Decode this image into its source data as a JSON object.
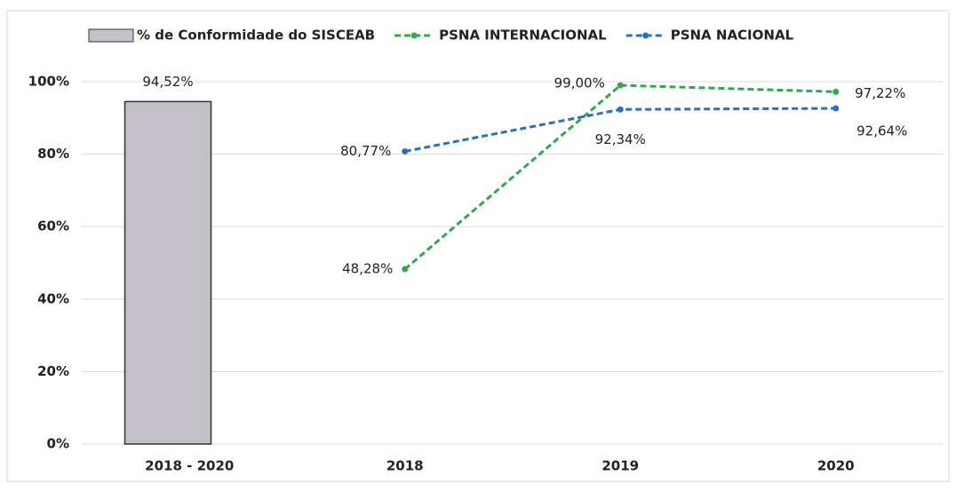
{
  "chart_data": {
    "type": "bar",
    "categories": [
      "2018 - 2020",
      "2018",
      "2019",
      "2020"
    ],
    "series": [
      {
        "name": "% de Conformidade do SISCEAB",
        "type": "bar",
        "color": "#c3c0c8",
        "values": [
          94.52,
          null,
          null,
          null
        ],
        "value_labels": [
          "94,52%",
          null,
          null,
          null
        ]
      },
      {
        "name": "PSNA INTERNACIONAL",
        "type": "line",
        "color": "#2fa84f",
        "values": [
          null,
          48.28,
          99.0,
          97.22
        ],
        "value_labels": [
          null,
          "48,28%",
          "99,00%",
          "97,22%"
        ]
      },
      {
        "name": "PSNA NACIONAL",
        "type": "line",
        "color": "#2a6fc0",
        "values": [
          null,
          80.77,
          92.34,
          92.64
        ],
        "value_labels": [
          null,
          "80,77%",
          "92,34%",
          "92,64%"
        ]
      }
    ],
    "ylim": [
      0,
      100
    ],
    "yticks": [
      {
        "value": 0,
        "label": "0%"
      },
      {
        "value": 20,
        "label": "20%"
      },
      {
        "value": 40,
        "label": "40%"
      },
      {
        "value": 60,
        "label": "60%"
      },
      {
        "value": 80,
        "label": "80%"
      },
      {
        "value": 100,
        "label": "100%"
      }
    ],
    "grid": true,
    "legend": "top"
  }
}
